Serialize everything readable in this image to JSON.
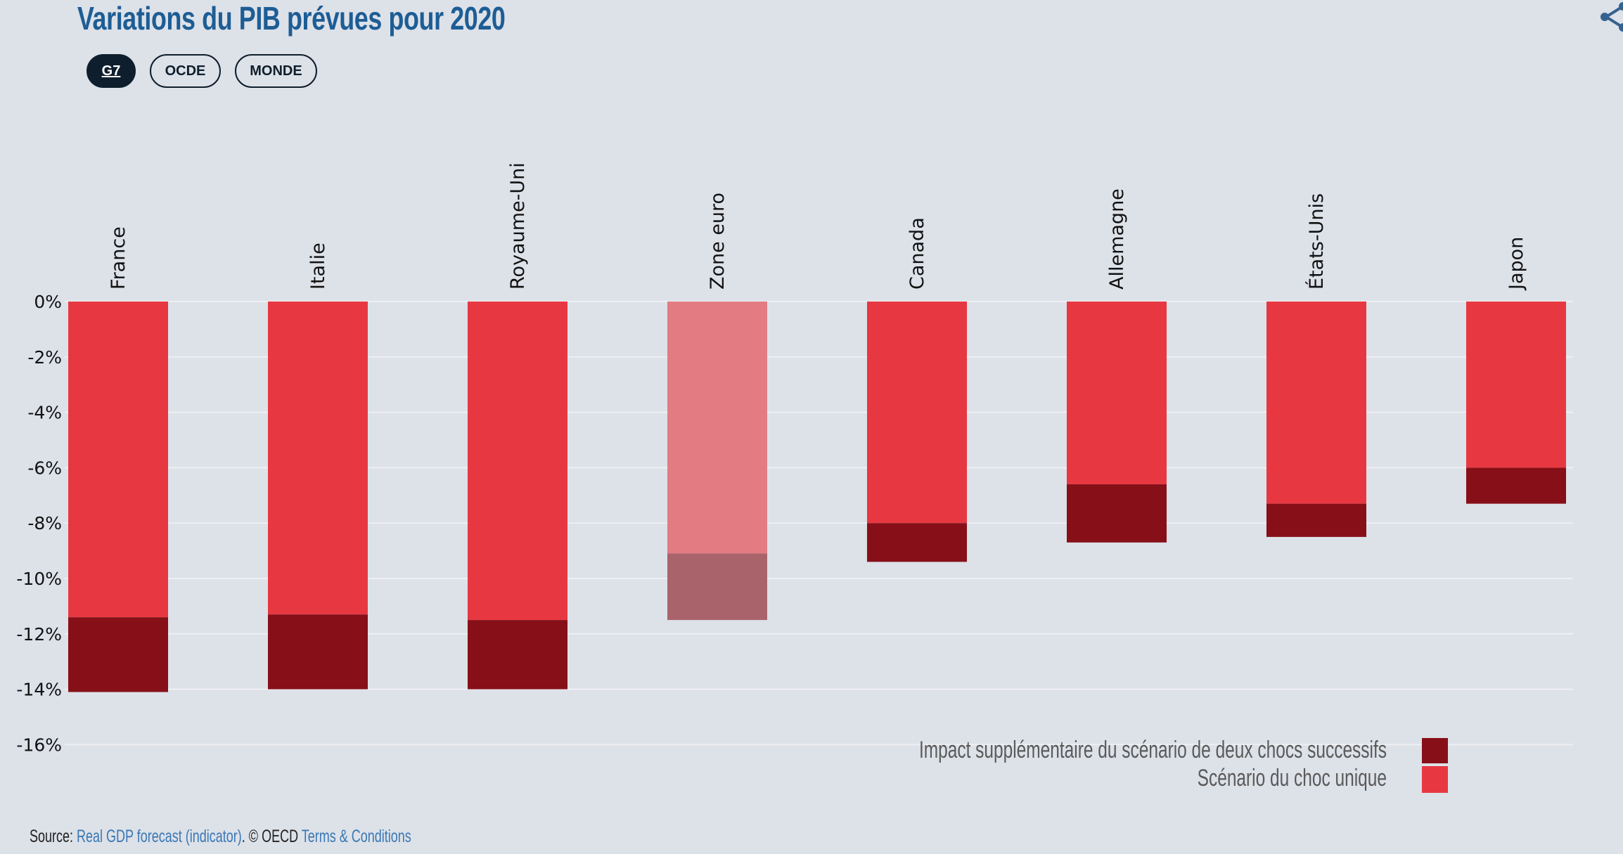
{
  "header": {
    "title": "Variations du PIB prévues pour 2020",
    "share_icon": "share-icon"
  },
  "filters": {
    "buttons": [
      {
        "label": "G7",
        "active": true
      },
      {
        "label": "OCDE",
        "active": false
      },
      {
        "label": "MONDE",
        "active": false
      }
    ]
  },
  "colors": {
    "single_shock": "#e73842",
    "additional_impact": "#870f18",
    "single_shock_highlight": "#e37b83",
    "additional_impact_highlight": "#a8646a",
    "title": "#1d5d95",
    "gridline": "#eef0f3",
    "background": "#dde1e8"
  },
  "chart_data": {
    "type": "bar",
    "stacked": true,
    "title": "Variations du PIB prévues pour 2020",
    "xlabel": "",
    "ylabel": "",
    "categories": [
      "France",
      "Italie",
      "Royaume-Uni",
      "Zone euro",
      "Canada",
      "Allemagne",
      "États-Unis",
      "Japon"
    ],
    "highlighted_category": "Zone euro",
    "series": [
      {
        "name": "Scénario du choc unique",
        "values": [
          -11.4,
          -11.3,
          -11.5,
          -9.1,
          -8.0,
          -6.6,
          -7.3,
          -6.0
        ]
      },
      {
        "name": "Impact supplémentaire du scénario de deux chocs successifs",
        "values": [
          -2.7,
          -2.7,
          -2.5,
          -2.4,
          -1.4,
          -2.1,
          -1.2,
          -1.3
        ]
      }
    ],
    "ylim": [
      -16,
      0
    ],
    "yticks": [
      0,
      -2,
      -4,
      -6,
      -8,
      -10,
      -12,
      -14,
      -16
    ],
    "ytick_labels": [
      "0%",
      "-2%",
      "-4%",
      "-6%",
      "-8%",
      "-10%",
      "-12%",
      "-14%",
      "-16%"
    ],
    "grid": true,
    "xaxis_position": "top",
    "legend": {
      "placement": "bottom-right",
      "entries": [
        {
          "label": "Impact supplémentaire du scénario de deux chocs successifs",
          "color": "#870f18"
        },
        {
          "label": "Scénario du choc unique",
          "color": "#e73842"
        }
      ]
    }
  },
  "footer": {
    "source_prefix": "Source: ",
    "source_link": "Real GDP forecast (indicator)",
    "copyright": ". © OECD ",
    "terms_link": "Terms & Conditions"
  }
}
